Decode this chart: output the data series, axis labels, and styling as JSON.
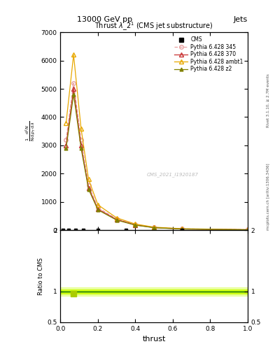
{
  "title_top": "13000 GeV pp",
  "title_right": "Jets",
  "plot_title": "Thrust $\\lambda\\_2^1$ (CMS jet substructure)",
  "xlabel": "thrust",
  "ylabel_lines": [
    "mathrm d$^2$N",
    "mathrm d p$_T$ mathrm d lamb",
    "mathrm{d}a",
    "1 / mathrm{d}N /"
  ],
  "ylabel_ratio": "Ratio to CMS",
  "watermark": "CMS_2021_I1920187",
  "rivet_text": "Rivet 3.1.10, ≥ 2.7M events",
  "arxiv_text": "mcplots.cern.ch [arXiv:1306.3436]",
  "cms_color": "#000000",
  "line_345_color": "#e8a0a0",
  "line_370_color": "#c83232",
  "line_ambt1_color": "#e8a800",
  "line_z2_color": "#808000",
  "ratio_band_color": "#c8ff00",
  "ratio_line_color": "#006400",
  "thrust_x": [
    0.03,
    0.07,
    0.11,
    0.15,
    0.2,
    0.3,
    0.4,
    0.5,
    0.65,
    1.0
  ],
  "py345_y": [
    3200,
    5200,
    3200,
    1600,
    800,
    400,
    200,
    100,
    50,
    20
  ],
  "py370_y": [
    3000,
    5000,
    3000,
    1500,
    750,
    380,
    190,
    95,
    45,
    18
  ],
  "pyambt1_y": [
    3800,
    6200,
    3600,
    1800,
    900,
    440,
    220,
    110,
    55,
    20
  ],
  "pyz2_y": [
    2900,
    4800,
    2900,
    1450,
    720,
    360,
    180,
    90,
    42,
    17
  ],
  "cms_x": [
    0.012,
    0.045,
    0.08,
    0.12,
    0.2,
    0.35,
    0.65
  ],
  "ylim_main": [
    0,
    7000
  ],
  "ylim_main_ticks": [
    0,
    1000,
    2000,
    3000,
    4000,
    5000,
    6000,
    7000
  ],
  "xlim": [
    0,
    1
  ],
  "ylim_ratio": [
    0.5,
    2.0
  ],
  "bg_color": "#ffffff"
}
